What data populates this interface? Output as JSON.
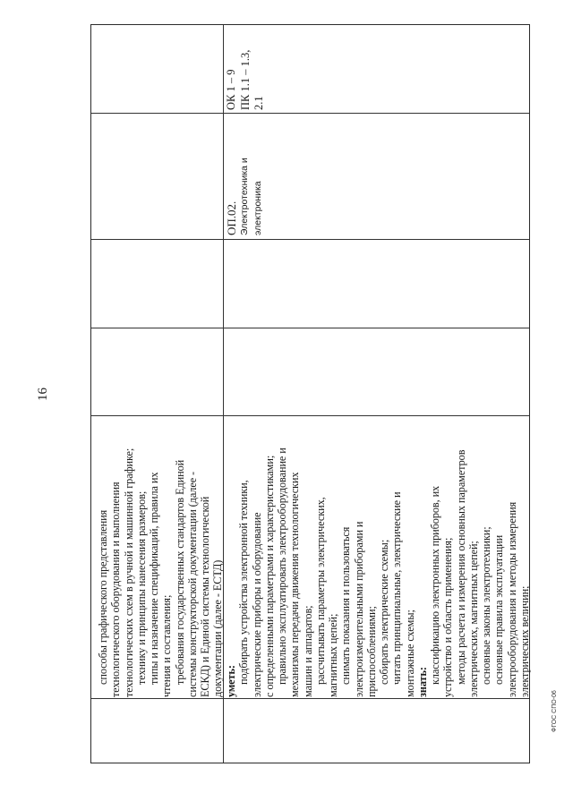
{
  "page_number": "16",
  "footer": "ФГОС СПО-06",
  "table": {
    "row2": {
      "discipline_code": "ОП.02.",
      "discipline_name_1": "Электротехника и",
      "discipline_name_2": "электроника",
      "competencies_1": "ОК 1 – 9",
      "competencies_2": "ПК 1.1 – 1.3,",
      "competencies_3": "2.1"
    },
    "text_lines": [
      {
        "text": "способы графического представления"
      },
      {
        "text": "технологического оборудования и выполнения"
      },
      {
        "text": "технологических схем в ручной и машинной графике;"
      },
      {
        "text": "технику и принципы нанесения размеров;"
      },
      {
        "text": "типы и назначение спецификаций, правила их"
      },
      {
        "text": "чтения и составления;"
      },
      {
        "text": "требования государственных стандартов Единой"
      },
      {
        "text": "системы конструкторской документации (далее -"
      },
      {
        "text": "ЕСКД) и Единой системы технологической"
      },
      {
        "text": "документации (далее - ЕСТД)"
      },
      {
        "text": "уметь:"
      },
      {
        "text": "подбирать устройства электронной техники,"
      },
      {
        "text": "электрические приборы и оборудование"
      },
      {
        "text": "с определенными параметрами и характеристиками;"
      },
      {
        "text": "правильно эксплуатировать электрооборудование и"
      },
      {
        "text": "механизмы передачи движения технологических"
      },
      {
        "text": "машин и аппаратов;"
      },
      {
        "text": "рассчитывать параметры электрических,"
      },
      {
        "text": "магнитных цепей;"
      },
      {
        "text": "снимать показания и пользоваться"
      },
      {
        "text": "электроизмерительными приборами и"
      },
      {
        "text": "приспособлениями;"
      },
      {
        "text": "собирать электрические схемы;"
      },
      {
        "text": "читать принципиальные, электрические и"
      },
      {
        "text": "монтажные схемы;"
      },
      {
        "text": "знать:"
      },
      {
        "text": "классификацию электронных приборов, их"
      },
      {
        "text": "устройство и область применения;"
      },
      {
        "text": "методы расчета и измерения основных параметров"
      },
      {
        "text": "электрических, магнитных цепей;"
      },
      {
        "text": "основные законы электротехники;"
      },
      {
        "text": "основные правила эксплуатации"
      },
      {
        "text": "электрооборудования и методы измерения"
      },
      {
        "text": "электрических величин;"
      }
    ]
  }
}
